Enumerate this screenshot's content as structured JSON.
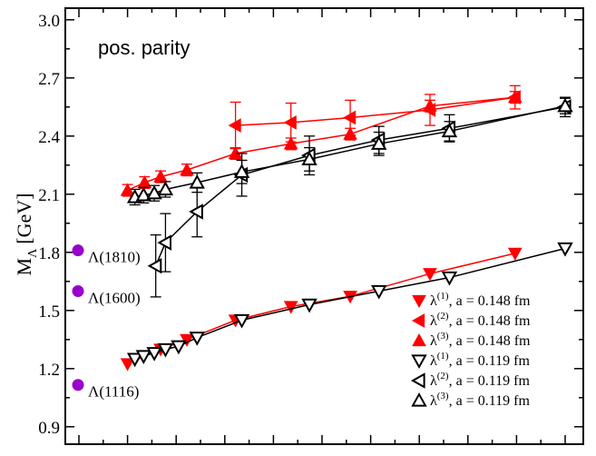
{
  "chart_data": {
    "type": "scatter",
    "title": "pos. parity",
    "xlabel": "",
    "ylabel": "M",
    "ylabel_sub": "Λ",
    "ylabel_unit": "[GeV]",
    "ylim": [
      0.81,
      3.06
    ],
    "xlim": [
      0,
      1
    ],
    "y_ticks": [
      "0.9",
      "1.2",
      "1.5",
      "1.8",
      "2.1",
      "2.4",
      "2.7",
      "3.0"
    ],
    "y_tick_values": [
      0.9,
      1.2,
      1.5,
      1.8,
      2.1,
      2.4,
      2.7,
      3.0
    ],
    "x_ticks_count": 11,
    "colors": {
      "red": "#ff0000",
      "black": "#000000",
      "purple": "#9900cc"
    },
    "series": [
      {
        "name": "λ(1), a = 0.148 fm",
        "sup": "(1)",
        "a_text": ", a = 0.148 fm",
        "color": "#ff0000",
        "marker": "tri-down-filled",
        "points": [
          [
            0.1,
            1.225,
            0.01
          ],
          [
            0.168,
            1.3,
            0.01
          ],
          [
            0.222,
            1.35,
            0.01
          ],
          [
            0.322,
            1.45,
            0.01
          ],
          [
            0.436,
            1.52,
            0.01
          ],
          [
            0.558,
            1.573,
            0.01
          ],
          [
            0.722,
            1.69,
            0.01
          ],
          [
            0.897,
            1.795,
            0.01
          ]
        ]
      },
      {
        "name": "λ(2), a = 0.148 fm",
        "sup": "(2)",
        "a_text": ", a = 0.148 fm",
        "color": "#ff0000",
        "marker": "tri-left-filled",
        "points": [
          [
            0.322,
            2.455,
            0.12
          ],
          [
            0.436,
            2.47,
            0.1
          ],
          [
            0.558,
            2.495,
            0.09
          ],
          [
            0.722,
            2.535,
            0.08
          ],
          [
            0.897,
            2.6,
            0.06
          ]
        ]
      },
      {
        "name": "λ(3), a = 0.148 fm",
        "sup": "(3)",
        "a_text": ", a = 0.148 fm",
        "color": "#ff0000",
        "marker": "tri-up-filled",
        "points": [
          [
            0.1,
            2.12,
            0.03
          ],
          [
            0.135,
            2.16,
            0.03
          ],
          [
            0.168,
            2.19,
            0.03
          ],
          [
            0.222,
            2.225,
            0.03
          ],
          [
            0.322,
            2.31,
            0.03
          ],
          [
            0.436,
            2.36,
            0.03
          ],
          [
            0.558,
            2.41,
            0.03
          ],
          [
            0.722,
            2.555,
            0.03
          ],
          [
            0.897,
            2.6,
            0.03
          ]
        ]
      },
      {
        "name": "λ(1), a = 0.119 fm",
        "sup": "(1)",
        "a_text": ", a = 0.119 fm",
        "color": "#000000",
        "marker": "tri-down-open",
        "points": [
          [
            0.115,
            1.25,
            0.01
          ],
          [
            0.133,
            1.265,
            0.01
          ],
          [
            0.155,
            1.28,
            0.01
          ],
          [
            0.178,
            1.3,
            0.01
          ],
          [
            0.205,
            1.315,
            0.01
          ],
          [
            0.243,
            1.36,
            0.01
          ],
          [
            0.335,
            1.45,
            0.01
          ],
          [
            0.474,
            1.53,
            0.01
          ],
          [
            0.617,
            1.6,
            0.01
          ],
          [
            0.762,
            1.67,
            0.01
          ],
          [
            1.0,
            1.82,
            0.01
          ]
        ]
      },
      {
        "name": "λ(2), a = 0.119 fm",
        "sup": "(2)",
        "a_text": ", a = 0.119 fm",
        "color": "#000000",
        "marker": "tri-left-open",
        "points": [
          [
            0.158,
            1.73,
            0.16
          ],
          [
            0.178,
            1.85,
            0.15
          ],
          [
            0.243,
            2.01,
            0.13
          ],
          [
            0.335,
            2.2,
            0.11
          ],
          [
            0.474,
            2.3,
            0.1
          ],
          [
            0.617,
            2.38,
            0.07
          ],
          [
            0.762,
            2.44,
            0.07
          ],
          [
            1.0,
            2.55,
            0.05
          ]
        ]
      },
      {
        "name": "λ(3), a = 0.119 fm",
        "sup": "(3)",
        "a_text": ", a = 0.119 fm",
        "color": "#000000",
        "marker": "tri-up-open",
        "points": [
          [
            0.115,
            2.085,
            0.04
          ],
          [
            0.133,
            2.095,
            0.04
          ],
          [
            0.155,
            2.105,
            0.04
          ],
          [
            0.178,
            2.125,
            0.04
          ],
          [
            0.243,
            2.16,
            0.05
          ],
          [
            0.335,
            2.215,
            0.06
          ],
          [
            0.474,
            2.28,
            0.06
          ],
          [
            0.617,
            2.36,
            0.06
          ],
          [
            0.762,
            2.425,
            0.05
          ],
          [
            1.0,
            2.555,
            0.04
          ]
        ]
      }
    ],
    "reference_states": [
      {
        "label": "Λ(1810)",
        "mass": 1.81
      },
      {
        "label": "Λ(1600)",
        "mass": 1.6
      },
      {
        "label": "Λ(1116)",
        "mass": 1.116
      }
    ]
  }
}
